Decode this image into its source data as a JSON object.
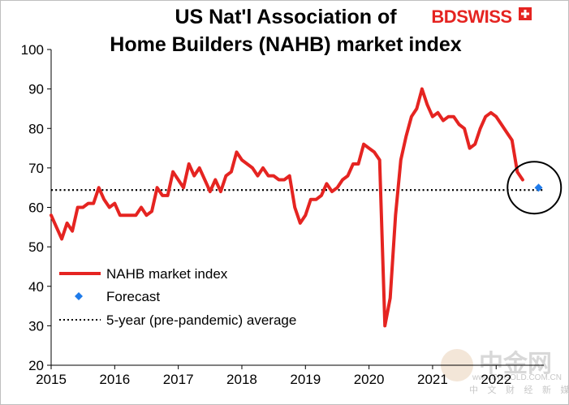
{
  "chart_data": {
    "type": "line",
    "title_lines": [
      "US Nat'l Association of",
      "Home Builders (NAHB) market index"
    ],
    "xlabel": "",
    "ylabel": "",
    "ylim": [
      20,
      100
    ],
    "yticks": [
      20,
      30,
      40,
      50,
      60,
      70,
      80,
      90,
      100
    ],
    "xlim": [
      2015,
      2022.75
    ],
    "xticks": [
      2015,
      2016,
      2017,
      2018,
      2019,
      2020,
      2021,
      2022
    ],
    "grid": false,
    "legend_position": "bottom-left",
    "series": [
      {
        "name": "NAHB market index",
        "color": "#e52421",
        "x": [
          2015.0,
          2015.083,
          2015.167,
          2015.25,
          2015.333,
          2015.417,
          2015.5,
          2015.583,
          2015.667,
          2015.75,
          2015.833,
          2015.917,
          2016.0,
          2016.083,
          2016.167,
          2016.25,
          2016.333,
          2016.417,
          2016.5,
          2016.583,
          2016.667,
          2016.75,
          2016.833,
          2016.917,
          2017.0,
          2017.083,
          2017.167,
          2017.25,
          2017.333,
          2017.417,
          2017.5,
          2017.583,
          2017.667,
          2017.75,
          2017.833,
          2017.917,
          2018.0,
          2018.083,
          2018.167,
          2018.25,
          2018.333,
          2018.417,
          2018.5,
          2018.583,
          2018.667,
          2018.75,
          2018.833,
          2018.917,
          2019.0,
          2019.083,
          2019.167,
          2019.25,
          2019.333,
          2019.417,
          2019.5,
          2019.583,
          2019.667,
          2019.75,
          2019.833,
          2019.917,
          2020.0,
          2020.083,
          2020.167,
          2020.25,
          2020.333,
          2020.417,
          2020.5,
          2020.583,
          2020.667,
          2020.75,
          2020.833,
          2020.917,
          2021.0,
          2021.083,
          2021.167,
          2021.25,
          2021.333,
          2021.417,
          2021.5,
          2021.583,
          2021.667,
          2021.75,
          2021.833,
          2021.917,
          2022.0,
          2022.083,
          2022.167,
          2022.25,
          2022.333,
          2022.417,
          2022.5
        ],
        "y": [
          58,
          55,
          52,
          56,
          54,
          60,
          60,
          61,
          61,
          65,
          62,
          60,
          61,
          58,
          58,
          58,
          58,
          60,
          58,
          59,
          65,
          63,
          63,
          69,
          67,
          65,
          71,
          68,
          70,
          67,
          64,
          67,
          64,
          68,
          69,
          74,
          72,
          71,
          70,
          68,
          70,
          68,
          68,
          67,
          67,
          68,
          60,
          56,
          58,
          62,
          62,
          63,
          66,
          64,
          65,
          67,
          68,
          71,
          71,
          76,
          75,
          74,
          72,
          30,
          37,
          58,
          72,
          78,
          83,
          85,
          90,
          86,
          83,
          84,
          82,
          83,
          83,
          81,
          80,
          75,
          76,
          80,
          83,
          84,
          83,
          81,
          79,
          77,
          69,
          67,
          null
        ],
        "line_width": 4
      },
      {
        "name": "Forecast",
        "color": "#1f7bea",
        "marker": "diamond",
        "x": [
          2022.667
        ],
        "y": [
          65
        ]
      },
      {
        "name": "5-year (pre-pandemic) average",
        "color": "#000000",
        "style": "dotted",
        "x": [
          2015,
          2022.75
        ],
        "y": [
          64.4,
          64.4
        ]
      }
    ],
    "annotations": [
      {
        "type": "circle",
        "center_x": 2022.6,
        "center_y": 65,
        "description": "circle highlighting latest reading and forecast"
      }
    ]
  },
  "brand": {
    "name_part1": "BD",
    "name_part2": "SWISS",
    "color": "#e52421"
  },
  "watermark": {
    "main": "中金网",
    "sub": "中 文 财 经 新 媒 体",
    "url": "www.CNGOLD.COM.CN"
  }
}
